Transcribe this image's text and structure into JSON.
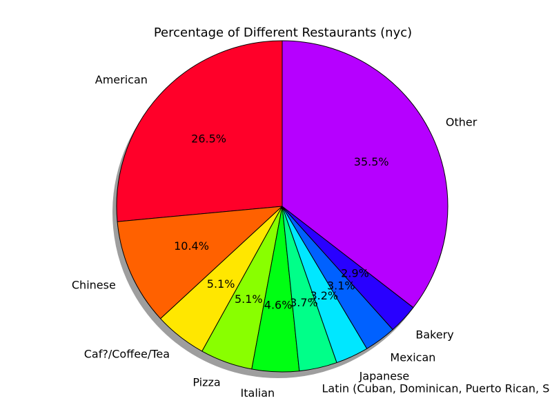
{
  "chart_data": {
    "type": "pie",
    "title": "Percentage of Different Restaurants (nyc)",
    "start_angle_deg": 90,
    "direction": "counterclockwise",
    "shadow": true,
    "slices": [
      {
        "label": "American",
        "value": 26.5,
        "pct_label": "26.5%",
        "color": "#ff0029"
      },
      {
        "label": "Chinese",
        "value": 10.4,
        "pct_label": "10.4%",
        "color": "#ff6100"
      },
      {
        "label": "Caf?/Coffee/Tea",
        "value": 5.1,
        "pct_label": "5.1%",
        "color": "#ffe700"
      },
      {
        "label": "Pizza",
        "value": 5.1,
        "pct_label": "5.1%",
        "color": "#89ff00"
      },
      {
        "label": "Italian",
        "value": 4.6,
        "pct_label": "4.6%",
        "color": "#00ff13"
      },
      {
        "label": "Latin (Cuban, Dominican, Puerto Rican, S",
        "value": 3.7,
        "pct_label": "3.7%",
        "color": "#00ff89"
      },
      {
        "label": "Japanese",
        "value": 3.2,
        "pct_label": "3.2%",
        "color": "#00e7ff"
      },
      {
        "label": "Mexican",
        "value": 3.1,
        "pct_label": "3.1%",
        "color": "#0061ff"
      },
      {
        "label": "Bakery",
        "value": 2.9,
        "pct_label": "2.9%",
        "color": "#2900ff"
      },
      {
        "label": "Other",
        "value": 35.5,
        "pct_label": "35.5%",
        "color": "#b600ff"
      }
    ]
  }
}
